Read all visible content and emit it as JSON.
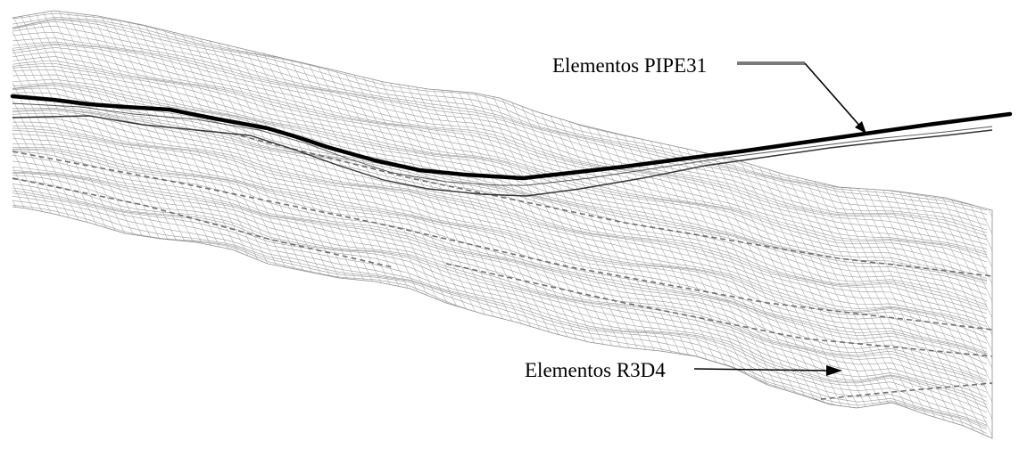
{
  "labels": {
    "pipe_elements": "Elementos PIPE31",
    "solid_elements": "Elementos R3D4"
  },
  "colors": {
    "mesh": "#9a9a9a",
    "pipe": "#000000",
    "leader_pipe": "#7a7a7a",
    "background": "#ffffff"
  }
}
